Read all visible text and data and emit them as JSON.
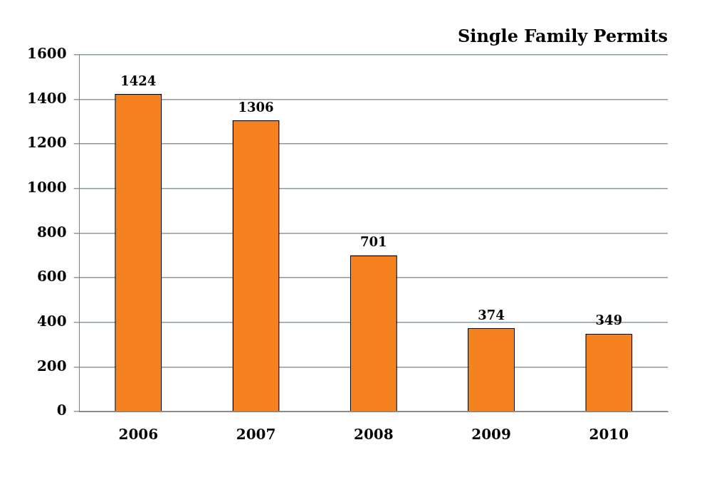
{
  "chart_data": {
    "type": "bar",
    "title": "Single Family Permits",
    "categories": [
      "2006",
      "2007",
      "2008",
      "2009",
      "2010"
    ],
    "values": [
      1424,
      1306,
      701,
      374,
      349
    ],
    "color": "#f5821f",
    "ylim": [
      0,
      1600
    ],
    "yticks": [
      0,
      200,
      400,
      600,
      800,
      1000,
      1200,
      1400,
      1600
    ],
    "grid": "y",
    "data_labels": true
  }
}
